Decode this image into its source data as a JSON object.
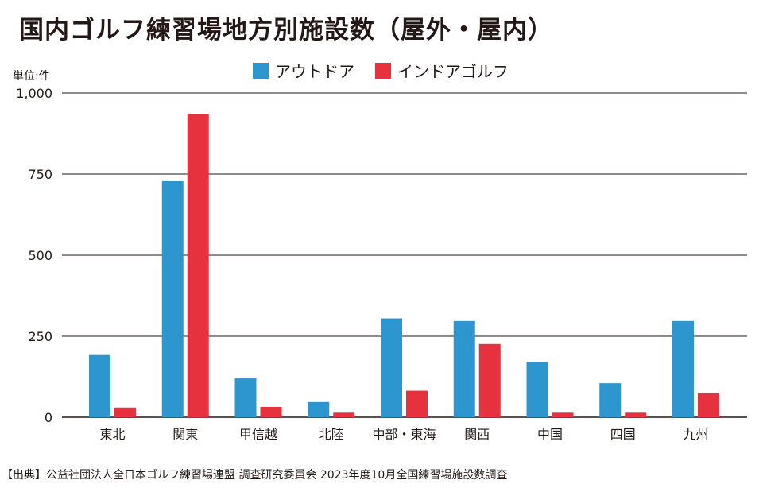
{
  "title": "国内ゴルフ練習場地方別施設数（屋外・屋内）",
  "unit_label": "単位:件",
  "source": "【出典】公益社団法人全日本ゴルフ練習場連盟 調査研究委員会 2023年度10月全国練習場施設数調査",
  "colors": {
    "outdoor": "#2e96cf",
    "indoor": "#e5323e",
    "grid": "#231815"
  },
  "chart_data": {
    "type": "bar",
    "categories": [
      "東北",
      "関東",
      "甲信越",
      "北陸",
      "中部・東海",
      "関西",
      "中国",
      "四国",
      "九州"
    ],
    "series": [
      {
        "name": "アウトドア",
        "values": [
          192,
          728,
          120,
          47,
          305,
          297,
          170,
          105,
          297
        ]
      },
      {
        "name": "インドアゴルフ",
        "values": [
          30,
          935,
          32,
          14,
          82,
          226,
          14,
          14,
          74
        ]
      }
    ],
    "ylim": [
      0,
      1000
    ],
    "yticks": [
      0,
      250,
      500,
      750,
      1000
    ],
    "ytick_labels": [
      "0",
      "250",
      "500",
      "750",
      "1,000"
    ],
    "grid": true,
    "legend": "top-center"
  }
}
